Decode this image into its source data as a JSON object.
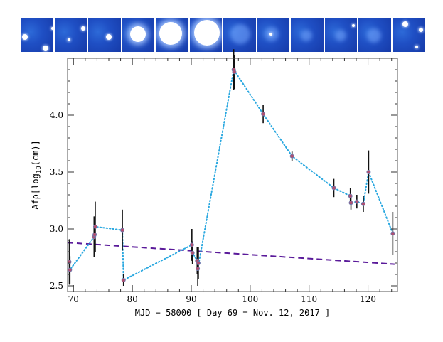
{
  "thumbnails": [
    {
      "name": "frame-1"
    },
    {
      "name": "frame-2"
    },
    {
      "name": "frame-3"
    },
    {
      "name": "frame-4"
    },
    {
      "name": "frame-5"
    },
    {
      "name": "frame-6"
    },
    {
      "name": "frame-7"
    },
    {
      "name": "frame-8"
    },
    {
      "name": "frame-9"
    },
    {
      "name": "frame-10"
    },
    {
      "name": "frame-11"
    },
    {
      "name": "frame-12"
    }
  ],
  "chart_data": {
    "type": "scatter",
    "title": "",
    "xlabel": "MJD − 58000 [ Day 69 = Nov. 12, 2017 ]",
    "ylabel_prefix": "Afρ[log",
    "ylabel_sub": "10",
    "ylabel_suffix": "(cm)]",
    "xlim": [
      69,
      125
    ],
    "ylim": [
      2.45,
      4.5
    ],
    "xticks": [
      70,
      80,
      90,
      100,
      110,
      120
    ],
    "yticks": [
      2.5,
      3.0,
      3.5,
      4.0
    ],
    "ytick_labels": [
      "2.5",
      "3.0",
      "3.5",
      "4.0"
    ],
    "grid": false,
    "series": [
      {
        "type": "points-with-errorbars",
        "color": "#b05070",
        "points": [
          {
            "x": 69.3,
            "y": 2.71,
            "err": 0.2
          },
          {
            "x": 69.4,
            "y": 2.64,
            "err": 0.12
          },
          {
            "x": 73.5,
            "y": 2.93,
            "err": 0.18
          },
          {
            "x": 73.6,
            "y": 2.95,
            "err": 0.16
          },
          {
            "x": 73.7,
            "y": 3.02,
            "err": 0.22
          },
          {
            "x": 78.3,
            "y": 2.99,
            "err": 0.18
          },
          {
            "x": 78.5,
            "y": 2.55,
            "err": 0.05
          },
          {
            "x": 90.1,
            "y": 2.86,
            "err": 0.14
          },
          {
            "x": 90.2,
            "y": 2.79,
            "err": 0.1
          },
          {
            "x": 91.0,
            "y": 2.72,
            "err": 0.12
          },
          {
            "x": 91.1,
            "y": 2.65,
            "err": 0.15
          },
          {
            "x": 91.2,
            "y": 2.7,
            "err": 0.14
          },
          {
            "x": 97.2,
            "y": 4.4,
            "err": 0.18
          },
          {
            "x": 97.3,
            "y": 4.38,
            "err": 0.15
          },
          {
            "x": 102.2,
            "y": 4.01,
            "err": 0.08
          },
          {
            "x": 107.1,
            "y": 3.64,
            "err": 0.04
          },
          {
            "x": 114.2,
            "y": 3.36,
            "err": 0.08
          },
          {
            "x": 117.0,
            "y": 3.29,
            "err": 0.07
          },
          {
            "x": 117.1,
            "y": 3.23,
            "err": 0.06
          },
          {
            "x": 118.1,
            "y": 3.24,
            "err": 0.06
          },
          {
            "x": 119.2,
            "y": 3.22,
            "err": 0.07
          },
          {
            "x": 120.1,
            "y": 3.5,
            "err": 0.19
          },
          {
            "x": 124.2,
            "y": 2.96,
            "err": 0.19
          }
        ]
      },
      {
        "type": "dotted-connector",
        "color": "#2aa8e0",
        "points": [
          {
            "x": 69.3,
            "y": 2.71
          },
          {
            "x": 69.4,
            "y": 2.64
          },
          {
            "x": 73.5,
            "y": 2.93
          },
          {
            "x": 73.7,
            "y": 3.02
          },
          {
            "x": 78.3,
            "y": 2.99
          },
          {
            "x": 78.5,
            "y": 2.55
          },
          {
            "x": 90.1,
            "y": 2.86
          },
          {
            "x": 90.2,
            "y": 2.79
          },
          {
            "x": 91.0,
            "y": 2.72
          },
          {
            "x": 91.1,
            "y": 2.65
          },
          {
            "x": 97.2,
            "y": 4.4
          },
          {
            "x": 102.2,
            "y": 4.01
          },
          {
            "x": 107.1,
            "y": 3.64
          },
          {
            "x": 114.2,
            "y": 3.36
          },
          {
            "x": 117.0,
            "y": 3.29
          },
          {
            "x": 117.1,
            "y": 3.23
          },
          {
            "x": 118.1,
            "y": 3.24
          },
          {
            "x": 119.2,
            "y": 3.22
          },
          {
            "x": 120.1,
            "y": 3.5
          },
          {
            "x": 124.2,
            "y": 2.96
          }
        ]
      },
      {
        "type": "dashed-trend",
        "color": "#5a1a9a",
        "points": [
          {
            "x": 69,
            "y": 2.88
          },
          {
            "x": 124.5,
            "y": 2.69
          }
        ]
      }
    ]
  }
}
